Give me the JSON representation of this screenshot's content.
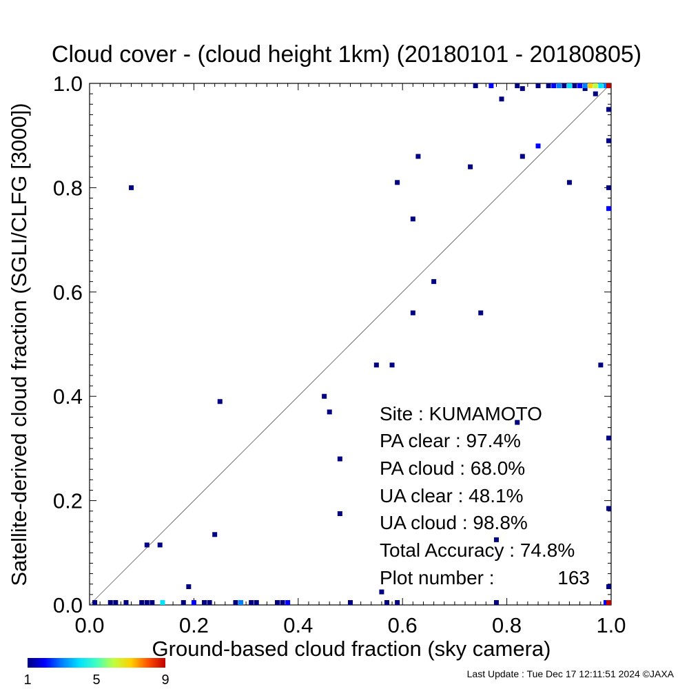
{
  "chart_data": {
    "type": "scatter",
    "title": "Cloud cover - (cloud height 1km)  (20180101 - 20180805)",
    "xlabel": "Ground-based cloud fraction (sky camera)",
    "ylabel": "Satellite-derived cloud fraction (SGLI/CLFG [3000])",
    "xlim": [
      0,
      1
    ],
    "ylim": [
      0,
      1
    ],
    "xticks": [
      "0.0",
      "0.2",
      "0.4",
      "0.6",
      "0.8",
      "1.0"
    ],
    "yticks": [
      "0.0",
      "0.2",
      "0.4",
      "0.6",
      "0.8",
      "1.0"
    ],
    "grid": false,
    "reference_line": "1:1 diagonal",
    "points": [
      {
        "x": 0.08,
        "y": 0.8,
        "n": 1
      },
      {
        "x": 0.11,
        "y": 0.115,
        "n": 1
      },
      {
        "x": 0.135,
        "y": 0.115,
        "n": 1
      },
      {
        "x": 0.19,
        "y": 0.035,
        "n": 1
      },
      {
        "x": 0.24,
        "y": 0.135,
        "n": 1
      },
      {
        "x": 0.25,
        "y": 0.39,
        "n": 1
      },
      {
        "x": 0.45,
        "y": 0.4,
        "n": 1
      },
      {
        "x": 0.46,
        "y": 0.37,
        "n": 1
      },
      {
        "x": 0.48,
        "y": 0.28,
        "n": 1
      },
      {
        "x": 0.48,
        "y": 0.175,
        "n": 1
      },
      {
        "x": 0.55,
        "y": 0.46,
        "n": 1
      },
      {
        "x": 0.58,
        "y": 0.46,
        "n": 1
      },
      {
        "x": 0.56,
        "y": 0.025,
        "n": 1
      },
      {
        "x": 0.59,
        "y": 0.81,
        "n": 1
      },
      {
        "x": 0.62,
        "y": 0.74,
        "n": 1
      },
      {
        "x": 0.62,
        "y": 0.56,
        "n": 1
      },
      {
        "x": 0.63,
        "y": 0.86,
        "n": 1
      },
      {
        "x": 0.66,
        "y": 0.62,
        "n": 1
      },
      {
        "x": 0.73,
        "y": 0.84,
        "n": 1
      },
      {
        "x": 0.75,
        "y": 0.56,
        "n": 1
      },
      {
        "x": 0.79,
        "y": 0.97,
        "n": 1
      },
      {
        "x": 0.82,
        "y": 0.35,
        "n": 1
      },
      {
        "x": 0.78,
        "y": 0.125,
        "n": 1
      },
      {
        "x": 0.83,
        "y": 0.86,
        "n": 1
      },
      {
        "x": 0.83,
        "y": 0.99,
        "n": 1
      },
      {
        "x": 0.86,
        "y": 0.88,
        "n": 2
      },
      {
        "x": 0.92,
        "y": 0.81,
        "n": 1
      },
      {
        "x": 0.95,
        "y": 0.99,
        "n": 1
      },
      {
        "x": 0.97,
        "y": 0.98,
        "n": 1
      },
      {
        "x": 0.98,
        "y": 0.46,
        "n": 1
      },
      {
        "x": 1.0,
        "y": 0.95,
        "n": 1
      },
      {
        "x": 1.0,
        "y": 0.89,
        "n": 1
      },
      {
        "x": 1.0,
        "y": 0.8,
        "n": 1
      },
      {
        "x": 1.0,
        "y": 0.76,
        "n": 2
      },
      {
        "x": 1.0,
        "y": 0.32,
        "n": 1
      },
      {
        "x": 1.0,
        "y": 0.185,
        "n": 1
      },
      {
        "x": 1.0,
        "y": 0.035,
        "n": 1
      },
      {
        "x": 0.74,
        "y": 1.0,
        "n": 1
      },
      {
        "x": 0.77,
        "y": 1.0,
        "n": 2
      },
      {
        "x": 0.82,
        "y": 1.0,
        "n": 1
      },
      {
        "x": 0.86,
        "y": 1.0,
        "n": 1
      },
      {
        "x": 0.88,
        "y": 1.0,
        "n": 1
      },
      {
        "x": 0.89,
        "y": 1.0,
        "n": 2
      },
      {
        "x": 0.9,
        "y": 1.0,
        "n": 3
      },
      {
        "x": 0.91,
        "y": 1.0,
        "n": 1
      },
      {
        "x": 0.92,
        "y": 1.0,
        "n": 4
      },
      {
        "x": 0.93,
        "y": 1.0,
        "n": 1
      },
      {
        "x": 0.94,
        "y": 1.0,
        "n": 2
      },
      {
        "x": 0.95,
        "y": 1.0,
        "n": 3
      },
      {
        "x": 0.96,
        "y": 1.0,
        "n": 7
      },
      {
        "x": 0.97,
        "y": 1.0,
        "n": 6
      },
      {
        "x": 0.98,
        "y": 1.0,
        "n": 4
      },
      {
        "x": 0.99,
        "y": 1.0,
        "n": 3
      },
      {
        "x": 1.0,
        "y": 1.0,
        "n": 9
      },
      {
        "x": 0.99,
        "y": 0.0,
        "n": 2
      },
      {
        "x": 1.0,
        "y": 0.0,
        "n": 9
      },
      {
        "x": 0.01,
        "y": 0.0,
        "n": 1
      },
      {
        "x": 0.04,
        "y": 0.0,
        "n": 1
      },
      {
        "x": 0.05,
        "y": 0.0,
        "n": 1
      },
      {
        "x": 0.07,
        "y": 0.0,
        "n": 1
      },
      {
        "x": 0.1,
        "y": 0.0,
        "n": 1
      },
      {
        "x": 0.11,
        "y": 0.0,
        "n": 1
      },
      {
        "x": 0.12,
        "y": 0.0,
        "n": 1
      },
      {
        "x": 0.14,
        "y": 0.0,
        "n": 4
      },
      {
        "x": 0.18,
        "y": 0.0,
        "n": 1
      },
      {
        "x": 0.2,
        "y": 0.0,
        "n": 2
      },
      {
        "x": 0.22,
        "y": 0.0,
        "n": 1
      },
      {
        "x": 0.23,
        "y": 0.0,
        "n": 1
      },
      {
        "x": 0.28,
        "y": 0.0,
        "n": 1
      },
      {
        "x": 0.29,
        "y": 0.0,
        "n": 3
      },
      {
        "x": 0.31,
        "y": 0.0,
        "n": 1
      },
      {
        "x": 0.32,
        "y": 0.0,
        "n": 1
      },
      {
        "x": 0.36,
        "y": 0.0,
        "n": 1
      },
      {
        "x": 0.37,
        "y": 0.0,
        "n": 1
      },
      {
        "x": 0.38,
        "y": 0.0,
        "n": 2
      },
      {
        "x": 0.5,
        "y": 0.0,
        "n": 1
      },
      {
        "x": 0.57,
        "y": 0.0,
        "n": 1
      },
      {
        "x": 0.59,
        "y": 0.0,
        "n": 1
      },
      {
        "x": 0.78,
        "y": 0.0,
        "n": 1
      }
    ],
    "colorbar": {
      "min_label": "1",
      "mid_label": "5",
      "max_label": "9",
      "colors": [
        "#000080",
        "#0000ff",
        "#0080ff",
        "#00e0ff",
        "#40ffc0",
        "#c0ff40",
        "#ffd000",
        "#ff5000",
        "#c00000"
      ]
    }
  },
  "stats": {
    "site": "Site : KUMAMOTO",
    "pa_clear": "PA clear :  97.4%",
    "pa_cloud": "PA cloud :  68.0%",
    "ua_clear": "UA clear :  48.1%",
    "ua_cloud": "UA cloud :  98.8%",
    "total_accuracy": "Total Accuracy :  74.8%",
    "plot_number_label": "Plot number :",
    "plot_number_value": "163"
  },
  "footer": "Last Update : Tue Dec 17 12:11:51 2024  ©JAXA"
}
